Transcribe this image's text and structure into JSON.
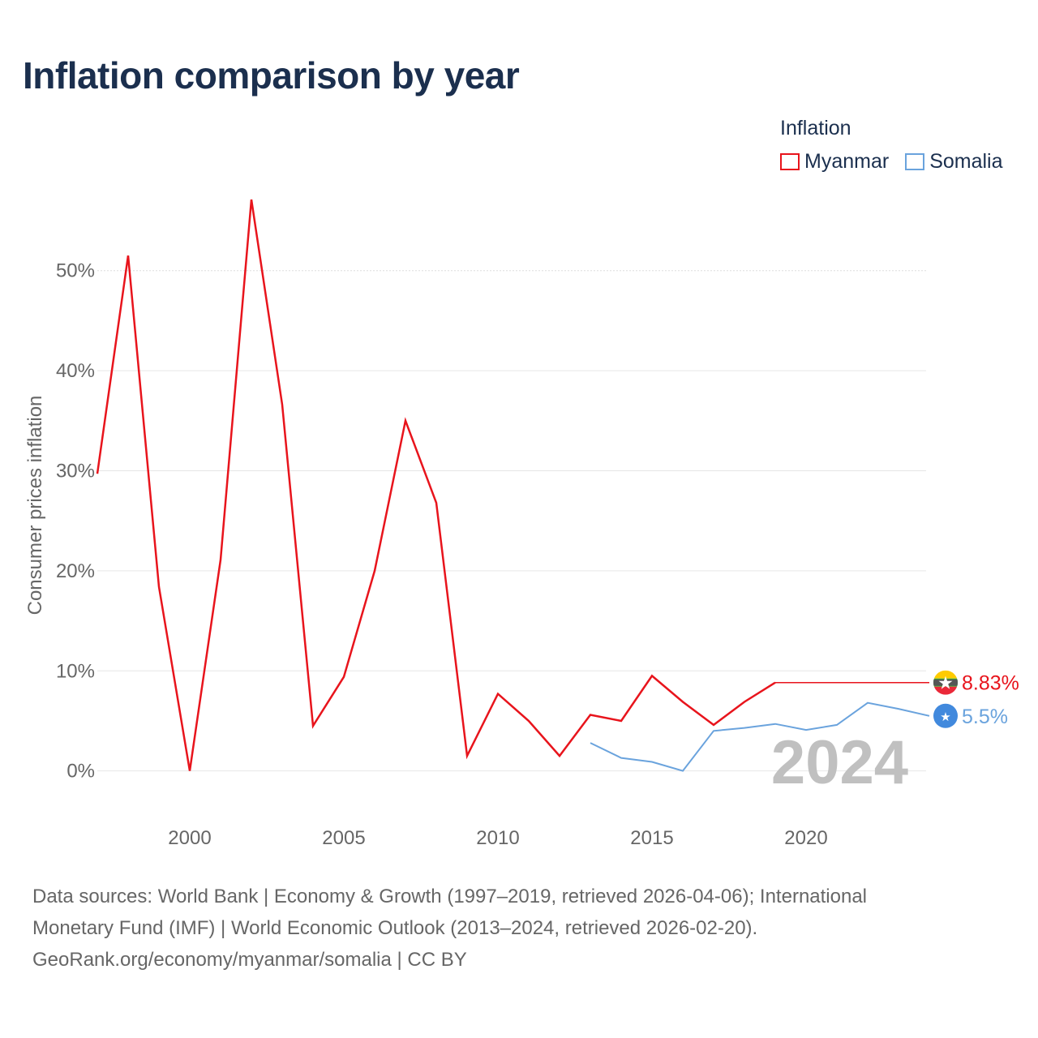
{
  "title": "Inflation comparison by year",
  "legend": {
    "title": "Inflation",
    "items": [
      {
        "label": "Myanmar",
        "color": "#e8141c"
      },
      {
        "label": "Somalia",
        "color": "#6aa3dd"
      }
    ]
  },
  "chart_data": {
    "type": "line",
    "ylabel": "Consumer prices inflation",
    "xlabel": "",
    "xlim": [
      1997,
      2024
    ],
    "ylim": [
      -4,
      58
    ],
    "y_ticks": [
      {
        "value": 0,
        "label": "0%"
      },
      {
        "value": 10,
        "label": "10%"
      },
      {
        "value": 20,
        "label": "20%"
      },
      {
        "value": 30,
        "label": "30%"
      },
      {
        "value": 40,
        "label": "40%"
      },
      {
        "value": 50,
        "label": "50%"
      }
    ],
    "x_ticks": [
      {
        "value": 2000,
        "label": "2000"
      },
      {
        "value": 2005,
        "label": "2005"
      },
      {
        "value": 2010,
        "label": "2010"
      },
      {
        "value": 2015,
        "label": "2015"
      },
      {
        "value": 2020,
        "label": "2020"
      }
    ],
    "year_watermark": "2024",
    "series": [
      {
        "name": "Myanmar",
        "color": "#e8141c",
        "x": [
          1997,
          1998,
          1999,
          2000,
          2001,
          2002,
          2003,
          2004,
          2005,
          2006,
          2007,
          2008,
          2009,
          2010,
          2011,
          2012,
          2013,
          2014,
          2015,
          2016,
          2017,
          2018,
          2019
        ],
        "values": [
          29.7,
          51.5,
          18.4,
          0.0,
          21.1,
          57.1,
          36.6,
          4.5,
          9.4,
          20.0,
          35.0,
          26.8,
          1.5,
          7.7,
          5.0,
          1.5,
          5.6,
          5.0,
          9.5,
          6.9,
          4.6,
          6.9,
          8.83
        ],
        "extension": {
          "from": 2019,
          "to": 2024,
          "value": 8.83
        },
        "end_label": "8.83%"
      },
      {
        "name": "Somalia",
        "color": "#6aa3dd",
        "x": [
          2013,
          2014,
          2015,
          2016,
          2017,
          2018,
          2019,
          2020,
          2021,
          2022,
          2023,
          2024
        ],
        "values": [
          2.8,
          1.3,
          0.9,
          0.0,
          4.0,
          4.3,
          4.7,
          4.1,
          4.6,
          6.8,
          6.2,
          5.5
        ],
        "end_label": "5.5%"
      }
    ]
  },
  "footer": {
    "line1": "Data sources: World Bank | Economy & Growth (1997–2019, retrieved 2026-04-06); International",
    "line2": "Monetary Fund (IMF) | World Economic Outlook (2013–2024, retrieved 2026-02-20).",
    "line3": "GeoRank.org/economy/myanmar/somalia | CC BY"
  }
}
